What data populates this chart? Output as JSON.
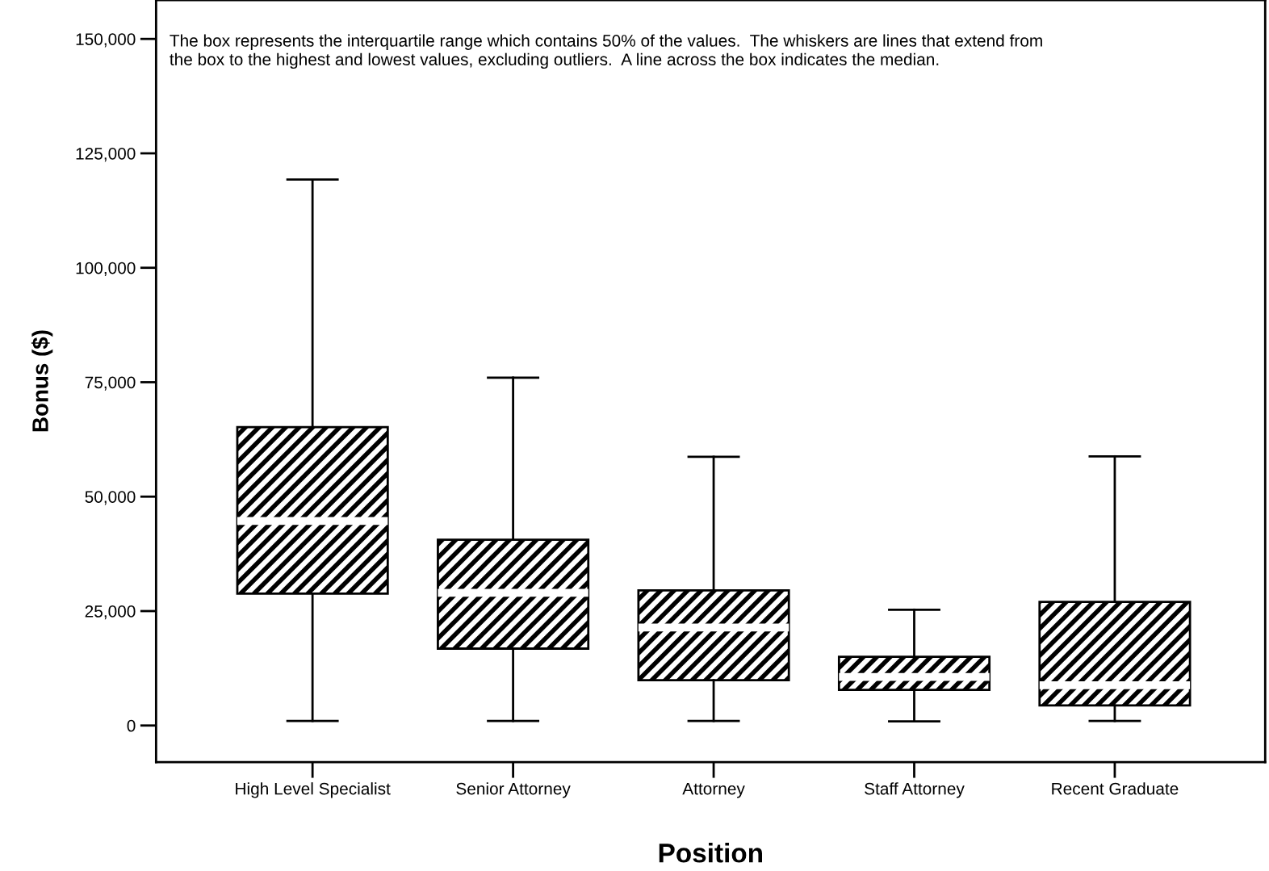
{
  "chart_data": {
    "type": "box",
    "xlabel": "Position",
    "ylabel": "Bonus ($)",
    "categories": [
      "High Level Specialist",
      "Senior Attorney",
      "Attorney",
      "Staff Attorney",
      "Recent Graduate"
    ],
    "boxes": [
      {
        "low": 1000,
        "q1": 28800,
        "median": 44700,
        "q3": 65200,
        "high": 119300
      },
      {
        "low": 1000,
        "q1": 16800,
        "median": 29000,
        "q3": 40600,
        "high": 76000
      },
      {
        "low": 1000,
        "q1": 9900,
        "median": 21400,
        "q3": 29500,
        "high": 58700
      },
      {
        "low": 900,
        "q1": 7800,
        "median": 10600,
        "q3": 15000,
        "high": 25300
      },
      {
        "low": 1000,
        "q1": 4400,
        "median": 8800,
        "q3": 27000,
        "high": 58800
      }
    ],
    "color": "#000000",
    "ylim": [
      -8000,
      158500
    ],
    "yticks": [
      {
        "value": 0,
        "label": "0"
      },
      {
        "value": 25000,
        "label": "25,000"
      },
      {
        "value": 50000,
        "label": "50,000"
      },
      {
        "value": 75000,
        "label": "75,000"
      },
      {
        "value": 100000,
        "label": "100,000"
      },
      {
        "value": 125000,
        "label": "125,000"
      },
      {
        "value": 150000,
        "label": "150,000"
      }
    ],
    "grid": false,
    "annotations": [
      "The box represents the interquartile range which contains 50% of the values.  The whiskers are lines that extend from\nthe box to the highest and lowest values, excluding outliers.  A line across the box indicates the median."
    ]
  }
}
